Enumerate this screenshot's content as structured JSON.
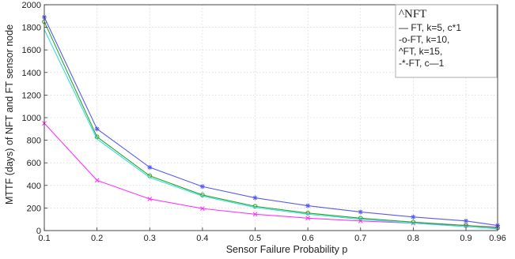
{
  "chart_data": {
    "type": "line",
    "title": "",
    "xlabel": "Sensor Failure Probability p",
    "ylabel": "MTTF (days) of NFT and FT sensor node",
    "xlim": [
      0.1,
      0.96
    ],
    "ylim": [
      0,
      2000
    ],
    "x_ticks": [
      0.1,
      0.2,
      0.3,
      0.4,
      0.5,
      0.6,
      0.7,
      0.8,
      0.9,
      0.96
    ],
    "x_tick_labels": [
      "0.1",
      "0.2",
      "0.3",
      "0.4",
      "0.5",
      "0.6",
      "0.7",
      "0.8",
      "0.9",
      "0.96"
    ],
    "y_ticks": [
      0,
      200,
      400,
      600,
      800,
      1000,
      1200,
      1400,
      1600,
      1800,
      2000
    ],
    "grid": true,
    "legend_position": "top-right",
    "legend_title": "^NFT",
    "x": [
      0.1,
      0.2,
      0.3,
      0.4,
      0.5,
      0.6,
      0.7,
      0.8,
      0.9,
      0.96
    ],
    "series": [
      {
        "name": "— FT, k=5, c*1",
        "color": "#ff33ff",
        "marker": "x",
        "values": [
          950,
          445,
          280,
          195,
          145,
          110,
          85,
          65,
          45,
          30
        ]
      },
      {
        "name": "-o-FT, k=10,",
        "color": "#2aa32a",
        "marker": "o",
        "values": [
          1850,
          830,
          485,
          315,
          215,
          155,
          110,
          75,
          45,
          25
        ]
      },
      {
        "name": "^FT, k=15,",
        "color": "#5a5aee",
        "marker": "star",
        "values": [
          1890,
          900,
          560,
          390,
          290,
          220,
          165,
          120,
          85,
          45
        ]
      },
      {
        "name": "-*-FT, c—1",
        "color": "#33dddd",
        "marker": "none",
        "values": [
          1780,
          810,
          470,
          305,
          205,
          145,
          100,
          65,
          35,
          15
        ]
      }
    ]
  }
}
